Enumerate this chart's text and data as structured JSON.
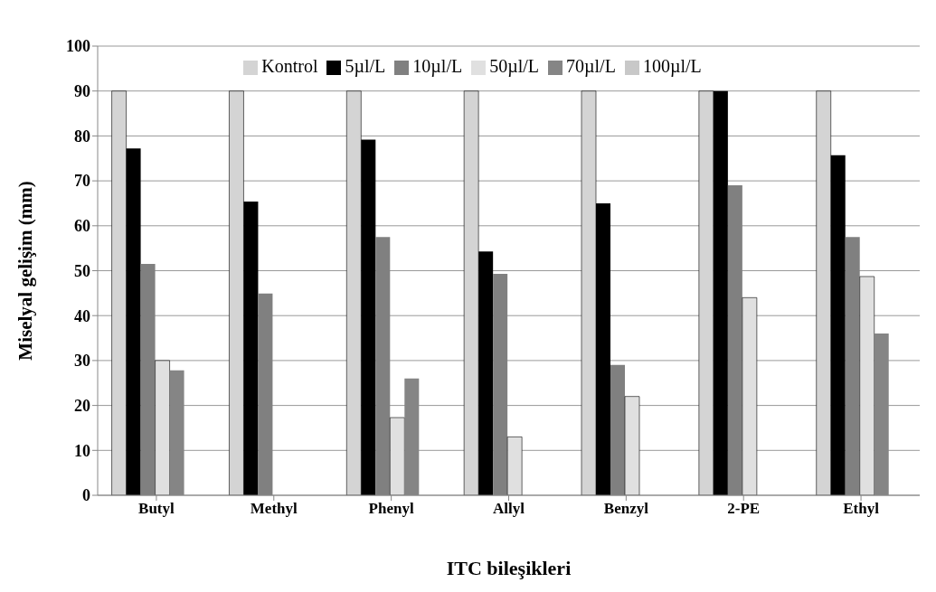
{
  "chart_data": {
    "type": "bar",
    "xlabel": "ITC bileşikleri",
    "ylabel": "Miselyal gelişim (mm)",
    "categories": [
      "Butyl",
      "Methyl",
      "Phenyl",
      "Allyl",
      "Benzyl",
      "2-PE",
      "Ethyl"
    ],
    "series": [
      {
        "name": "Kontrol",
        "color": "#d4d4d4",
        "values": [
          90,
          90,
          90,
          90,
          90,
          90,
          90
        ]
      },
      {
        "name": "5µl/L",
        "color": "#000000",
        "values": [
          77.2,
          65.4,
          79.2,
          54.3,
          65,
          90,
          75.7
        ]
      },
      {
        "name": "10µl/L",
        "color": "#808080",
        "values": [
          51.5,
          44.9,
          57.5,
          49.3,
          29,
          69,
          57.5
        ]
      },
      {
        "name": "50µl/L",
        "color": "#e0e0e0",
        "values": [
          30,
          0,
          17.3,
          13,
          22,
          44,
          48.7
        ]
      },
      {
        "name": "70µl/L",
        "color": "#858585",
        "values": [
          27.8,
          0,
          26,
          0,
          0,
          0,
          36
        ]
      },
      {
        "name": "100µl/L",
        "color": "#c8c8c8",
        "values": [
          0,
          0,
          0,
          0,
          0,
          0,
          0
        ]
      }
    ],
    "ylim": [
      0,
      100
    ],
    "yticks": [
      0,
      10,
      20,
      30,
      40,
      50,
      60,
      70,
      80,
      90,
      100
    ],
    "grid": "y",
    "legend": "top"
  }
}
